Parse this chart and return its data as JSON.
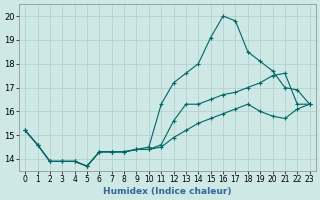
{
  "xlabel": "Humidex (Indice chaleur)",
  "bg_color": "#cde8e5",
  "line_color": "#006666",
  "grid_color": "#b0cccc",
  "xlim": [
    -0.5,
    23.5
  ],
  "ylim": [
    13.5,
    20.5
  ],
  "xticks": [
    0,
    1,
    2,
    3,
    4,
    5,
    6,
    7,
    8,
    9,
    10,
    11,
    12,
    13,
    14,
    15,
    16,
    17,
    18,
    19,
    20,
    21,
    22,
    23
  ],
  "yticks": [
    14,
    15,
    16,
    17,
    18,
    19,
    20
  ],
  "line_upper_x": [
    0,
    1,
    2,
    3,
    4,
    5,
    6,
    7,
    8,
    9,
    10,
    11,
    12,
    13,
    14,
    15,
    16,
    17,
    18,
    19,
    20,
    21,
    22,
    23
  ],
  "line_upper_y": [
    15.2,
    14.6,
    13.9,
    13.9,
    13.9,
    13.7,
    14.3,
    14.3,
    14.3,
    14.4,
    14.5,
    16.3,
    17.2,
    17.6,
    18.0,
    19.1,
    20.0,
    19.8,
    18.5,
    18.1,
    17.7,
    17.0,
    16.9,
    16.3
  ],
  "line_mid_x": [
    0,
    1,
    2,
    3,
    4,
    5,
    6,
    7,
    8,
    9,
    10,
    11,
    12,
    13,
    14,
    15,
    16,
    17,
    18,
    19,
    20,
    21,
    22,
    23
  ],
  "line_mid_y": [
    15.2,
    14.6,
    13.9,
    13.9,
    13.9,
    13.7,
    14.3,
    14.3,
    14.3,
    14.4,
    14.4,
    14.6,
    15.6,
    16.3,
    16.3,
    16.5,
    16.7,
    16.8,
    17.0,
    17.2,
    17.5,
    17.6,
    16.3,
    16.3
  ],
  "line_lower_x": [
    0,
    1,
    2,
    3,
    4,
    5,
    6,
    7,
    8,
    9,
    10,
    11,
    12,
    13,
    14,
    15,
    16,
    17,
    18,
    19,
    20,
    21,
    22,
    23
  ],
  "line_lower_y": [
    15.2,
    14.6,
    13.9,
    13.9,
    13.9,
    13.7,
    14.3,
    14.3,
    14.3,
    14.4,
    14.4,
    14.5,
    14.9,
    15.2,
    15.5,
    15.7,
    15.9,
    16.1,
    16.3,
    16.0,
    15.8,
    15.7,
    16.1,
    16.3
  ]
}
